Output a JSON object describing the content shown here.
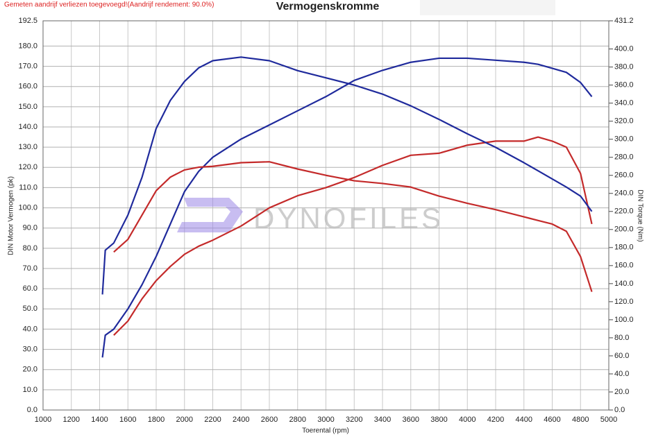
{
  "chart_data": {
    "type": "line",
    "title": "Vermogenskromme",
    "note": "Gemeten aandrijf verliezen toegevoegd!(Aandrijf rendement: 90.0%)",
    "x_label": "Toerental (rpm)",
    "y_label": "DIN Motor Vermogen (pk)",
    "y2_label": "DIN Torque (Nm)",
    "watermark": "DYNOFILES",
    "grid": true,
    "xlim": [
      1000,
      5000
    ],
    "xticks": [
      1000,
      1200,
      1400,
      1600,
      1800,
      2000,
      2200,
      2400,
      2600,
      2800,
      3000,
      3200,
      3400,
      3600,
      3800,
      4000,
      4200,
      4400,
      4600,
      4800,
      5000
    ],
    "ylim": [
      0,
      192.5
    ],
    "yticks": [
      {
        "value": 0,
        "label": "0.0"
      },
      {
        "value": 10,
        "label": "10.0"
      },
      {
        "value": 20,
        "label": "20.0"
      },
      {
        "value": 30,
        "label": "30.0"
      },
      {
        "value": 40,
        "label": "40.0"
      },
      {
        "value": 50,
        "label": "50.0"
      },
      {
        "value": 60,
        "label": "60.0"
      },
      {
        "value": 70,
        "label": "70.0"
      },
      {
        "value": 80,
        "label": "80.0"
      },
      {
        "value": 90,
        "label": "90.0"
      },
      {
        "value": 100,
        "label": "100.0"
      },
      {
        "value": 110,
        "label": "110.0"
      },
      {
        "value": 120,
        "label": "120.0"
      },
      {
        "value": 130,
        "label": "130.0"
      },
      {
        "value": 140,
        "label": "140.0"
      },
      {
        "value": 150,
        "label": "150.0"
      },
      {
        "value": 160,
        "label": "160.0"
      },
      {
        "value": 170,
        "label": "170.0"
      },
      {
        "value": 180,
        "label": "180.0"
      },
      192.5
    ],
    "y2lim": [
      0,
      431.2
    ],
    "y2ticks": [
      {
        "value": 0,
        "label": "0.0"
      },
      {
        "value": 20,
        "label": "20.0"
      },
      {
        "value": 40,
        "label": "40.0"
      },
      {
        "value": 60,
        "label": "60.0"
      },
      {
        "value": 80,
        "label": "80.0"
      },
      {
        "value": 100,
        "label": "100.0"
      },
      {
        "value": 120,
        "label": "120.0"
      },
      {
        "value": 140,
        "label": "140.0"
      },
      {
        "value": 160,
        "label": "160.0"
      },
      {
        "value": 180,
        "label": "180.0"
      },
      {
        "value": 200,
        "label": "200.0"
      },
      {
        "value": 220,
        "label": "220.0"
      },
      {
        "value": 240,
        "label": "240.0"
      },
      {
        "value": 260,
        "label": "260.0"
      },
      {
        "value": 280,
        "label": "280.0"
      },
      {
        "value": 300,
        "label": "300.0"
      },
      {
        "value": 320,
        "label": "320.0"
      },
      {
        "value": 340,
        "label": "340.0"
      },
      {
        "value": 360,
        "label": "360.0"
      },
      {
        "value": 380,
        "label": "380.0"
      },
      {
        "value": 400,
        "label": "400.0"
      },
      431.2
    ],
    "x": [
      1420,
      1440,
      1500,
      1600,
      1700,
      1800,
      1900,
      2000,
      2100,
      2200,
      2400,
      2600,
      2800,
      3000,
      3200,
      3400,
      3600,
      3800,
      4000,
      4200,
      4400,
      4500,
      4600,
      4700,
      4800,
      4880
    ],
    "series": [
      {
        "color": "#1f2a9c",
        "values": [
          26,
          37,
          40,
          50,
          62,
          76,
          92,
          108,
          118,
          125,
          134,
          141,
          148,
          155,
          163,
          168,
          172,
          174,
          174,
          173,
          172,
          171,
          169,
          167,
          162,
          155
        ]
      },
      {
        "color": "#c42a2a",
        "values": [
          null,
          null,
          37,
          44,
          55,
          64,
          71,
          77,
          81,
          84,
          91,
          100,
          106,
          110,
          115,
          121,
          126,
          127,
          131,
          133,
          133,
          135,
          133,
          130,
          117,
          92
        ]
      },
      {
        "color": "#1f2a9c",
        "axis": "y2",
        "values": [
          128,
          177,
          185,
          216,
          258,
          312,
          343,
          364,
          379,
          387,
          391,
          387,
          376,
          368,
          360,
          350,
          337,
          322,
          306,
          291,
          274,
          265,
          256,
          247,
          237,
          220
        ]
      },
      {
        "color": "#c42a2a",
        "axis": "y2",
        "values": [
          null,
          null,
          175,
          189,
          216,
          243,
          258,
          266,
          269,
          270,
          274,
          275,
          267,
          260,
          254,
          251,
          247,
          237,
          229,
          222,
          214,
          210,
          206,
          198,
          170,
          131
        ]
      }
    ]
  }
}
